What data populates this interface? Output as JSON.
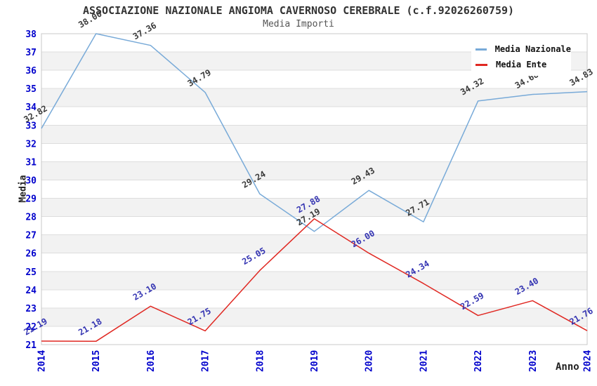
{
  "chart_data": {
    "type": "line",
    "title": "ASSOCIAZIONE NAZIONALE ANGIOMA CAVERNOSO CEREBRALE (c.f.92026260759)",
    "subtitle": "Media Importi",
    "xlabel": "Anno",
    "ylabel": "Media",
    "categories": [
      2014,
      2015,
      2016,
      2017,
      2018,
      2019,
      2020,
      2021,
      2022,
      2023,
      2024
    ],
    "series": [
      {
        "name": "Media Nazionale",
        "color": "#78aad8",
        "label_color": "#3a3a3a",
        "values": [
          32.82,
          38.0,
          37.36,
          34.79,
          29.24,
          27.19,
          29.43,
          27.71,
          34.32,
          34.68,
          34.83
        ]
      },
      {
        "name": "Media Ente",
        "color": "#e02822",
        "label_color": "#3434b2",
        "values": [
          21.19,
          21.18,
          23.1,
          21.75,
          25.05,
          27.88,
          26.0,
          24.34,
          22.59,
          23.4,
          21.76
        ]
      }
    ],
    "ylim": [
      21,
      38
    ],
    "ytick_step": 1,
    "grid": "horizontal gridlines with alternating gray bands",
    "band_color": "#f2f2f2",
    "gridline_color": "#dddddd",
    "plot_border_color": "#c8c8c8",
    "axis_tick_color": "#0000cc",
    "legend_position": "top-right",
    "value_label_format": "two decimals, rotated -30deg"
  }
}
